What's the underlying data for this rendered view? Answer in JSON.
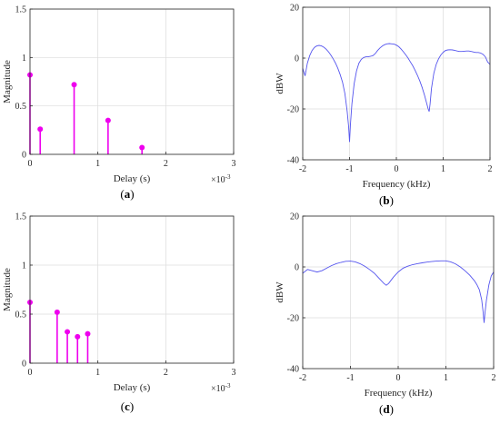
{
  "chart_data": [
    {
      "id": "a",
      "type": "stem",
      "caption_letter": "a",
      "xlabel": "Delay (s)",
      "ylabel": "Magnitude",
      "x_multiplier": "×10",
      "x_multiplier_exp": "-3",
      "xlim": [
        0,
        3
      ],
      "ylim": [
        0,
        1.5
      ],
      "xticks": [
        0,
        1,
        2,
        3
      ],
      "yticks": [
        0,
        0.5,
        1,
        1.5
      ],
      "xticklabels": [
        "0",
        "1",
        "2",
        "3"
      ],
      "yticklabels": [
        "0",
        "0.5",
        "1",
        "1.5"
      ],
      "grid": true,
      "color": "#ee00ee",
      "x": [
        0.0,
        0.15,
        0.65,
        1.15,
        1.65
      ],
      "values": [
        0.82,
        0.26,
        0.72,
        0.35,
        0.07
      ]
    },
    {
      "id": "b",
      "type": "line",
      "caption_letter": "b",
      "xlabel": "Frequency (kHz)",
      "ylabel": "dBW",
      "xlim": [
        -2,
        2
      ],
      "ylim": [
        -40,
        20
      ],
      "xticks": [
        -2,
        -1,
        0,
        1,
        2
      ],
      "yticks": [
        -40,
        -20,
        0,
        20
      ],
      "xticklabels": [
        "-2",
        "-1",
        "0",
        "1",
        "2"
      ],
      "yticklabels": [
        "-40",
        "-20",
        "0",
        "20"
      ],
      "grid": true,
      "color": "#5555ee",
      "x": [
        -2.0,
        -1.95,
        -1.9,
        -1.85,
        -1.8,
        -1.75,
        -1.7,
        -1.65,
        -1.6,
        -1.55,
        -1.5,
        -1.45,
        -1.4,
        -1.35,
        -1.3,
        -1.25,
        -1.2,
        -1.15,
        -1.1,
        -1.05,
        -1.02,
        -1.0,
        -0.98,
        -0.95,
        -0.9,
        -0.85,
        -0.8,
        -0.75,
        -0.7,
        -0.65,
        -0.6,
        -0.55,
        -0.5,
        -0.45,
        -0.4,
        -0.35,
        -0.3,
        -0.25,
        -0.2,
        -0.15,
        -0.1,
        -0.05,
        0.0,
        0.05,
        0.1,
        0.15,
        0.2,
        0.25,
        0.3,
        0.35,
        0.4,
        0.45,
        0.5,
        0.55,
        0.6,
        0.65,
        0.68,
        0.7,
        0.72,
        0.75,
        0.8,
        0.85,
        0.9,
        0.95,
        1.0,
        1.05,
        1.1,
        1.15,
        1.2,
        1.25,
        1.3,
        1.35,
        1.4,
        1.45,
        1.5,
        1.55,
        1.6,
        1.65,
        1.7,
        1.75,
        1.8,
        1.85,
        1.9,
        1.95,
        2.0
      ],
      "y": [
        -4,
        -7,
        -2,
        1,
        3,
        4.2,
        4.8,
        5,
        4.8,
        4.3,
        3.5,
        2.5,
        1.2,
        -0.3,
        -2,
        -4,
        -6.5,
        -9.5,
        -14,
        -21,
        -27,
        -33,
        -26,
        -18,
        -10,
        -5,
        -2,
        -0.5,
        0.2,
        0.5,
        0.5,
        0.7,
        1,
        1.8,
        3,
        4,
        4.8,
        5.3,
        5.6,
        5.7,
        5.6,
        5.5,
        5.1,
        4.5,
        3.6,
        2.5,
        1.3,
        0,
        -1.5,
        -3,
        -4.8,
        -6.8,
        -9,
        -11.5,
        -14.5,
        -18,
        -20,
        -21,
        -18,
        -12,
        -6,
        -2.5,
        -0.3,
        1.2,
        2.3,
        3,
        3.2,
        3.3,
        3.2,
        3,
        2.8,
        2.6,
        2.6,
        2.7,
        2.8,
        2.8,
        2.6,
        2.4,
        2.2,
        2.2,
        2,
        1.5,
        0.5,
        -1.5,
        -2.5
      ]
    },
    {
      "id": "c",
      "type": "stem",
      "caption_letter": "c",
      "xlabel": "Delay (s)",
      "ylabel": "Magnitude",
      "x_multiplier": "×10",
      "x_multiplier_exp": "-3",
      "xlim": [
        0,
        3
      ],
      "ylim": [
        0,
        1.5
      ],
      "xticks": [
        0,
        1,
        2,
        3
      ],
      "yticks": [
        0,
        0.5,
        1,
        1.5
      ],
      "xticklabels": [
        "0",
        "1",
        "2",
        "3"
      ],
      "yticklabels": [
        "0",
        "0.5",
        "1",
        "1.5"
      ],
      "grid": true,
      "color": "#ee00ee",
      "x": [
        0.0,
        0.4,
        0.55,
        0.7,
        0.85
      ],
      "values": [
        0.62,
        0.52,
        0.32,
        0.27,
        0.3
      ]
    },
    {
      "id": "d",
      "type": "line",
      "caption_letter": "d",
      "xlabel": "Frequency (kHz)",
      "ylabel": "dBW",
      "xlim": [
        -2,
        2
      ],
      "ylim": [
        -40,
        20
      ],
      "xticks": [
        -2,
        -1,
        0,
        1,
        2
      ],
      "yticks": [
        -40,
        -20,
        0,
        20
      ],
      "xticklabels": [
        "-2",
        "-1",
        "0",
        "1",
        "2"
      ],
      "yticklabels": [
        "-40",
        "-20",
        "0",
        "20"
      ],
      "grid": true,
      "color": "#5555ee",
      "x": [
        -2.0,
        -1.9,
        -1.8,
        -1.7,
        -1.6,
        -1.5,
        -1.4,
        -1.3,
        -1.2,
        -1.1,
        -1.0,
        -0.9,
        -0.8,
        -0.7,
        -0.6,
        -0.5,
        -0.4,
        -0.3,
        -0.25,
        -0.2,
        -0.1,
        0.0,
        0.1,
        0.2,
        0.3,
        0.4,
        0.5,
        0.6,
        0.7,
        0.8,
        0.9,
        1.0,
        1.1,
        1.2,
        1.3,
        1.4,
        1.5,
        1.6,
        1.65,
        1.7,
        1.75,
        1.78,
        1.8,
        1.82,
        1.85,
        1.9,
        1.95,
        2.0
      ],
      "y": [
        -2.5,
        -1,
        -1.5,
        -2,
        -1.5,
        -0.5,
        0.5,
        1.3,
        1.8,
        2.2,
        2.3,
        2,
        1.3,
        0.3,
        -1,
        -2.5,
        -4.5,
        -6.5,
        -7.2,
        -6.5,
        -4,
        -2,
        -0.5,
        0.3,
        0.9,
        1.3,
        1.6,
        1.9,
        2.1,
        2.3,
        2.4,
        2.4,
        2,
        1.2,
        0,
        -1.5,
        -3.3,
        -5.5,
        -7,
        -9,
        -13,
        -18,
        -22,
        -18,
        -13,
        -7,
        -3.5,
        -2
      ]
    }
  ]
}
